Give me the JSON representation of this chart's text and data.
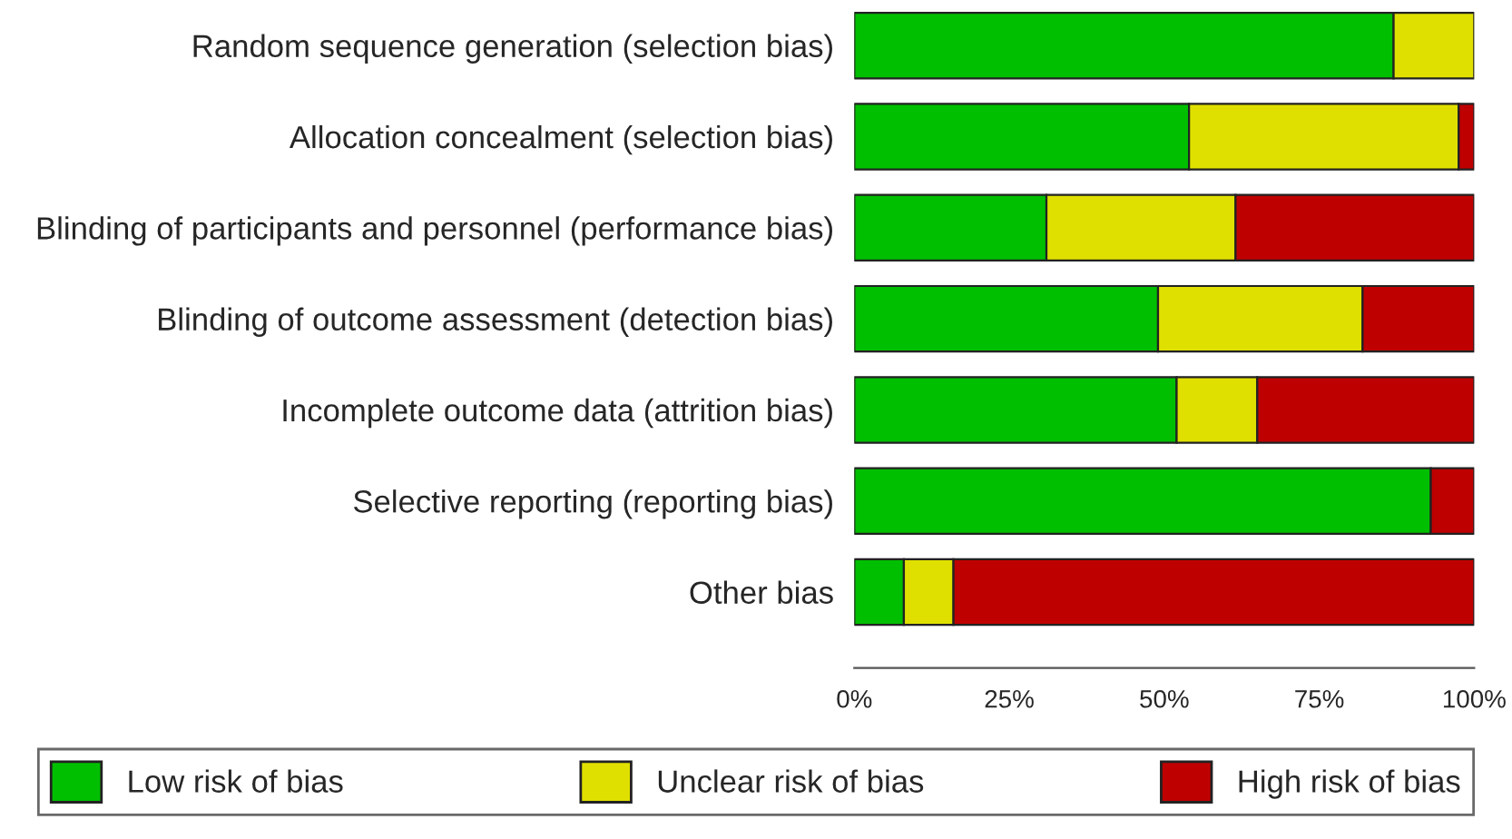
{
  "chart_data": {
    "type": "bar",
    "orientation": "horizontal",
    "stacked": true,
    "categories": [
      "Random sequence generation (selection bias)",
      "Allocation concealment (selection bias)",
      "Blinding of participants and personnel (performance bias)",
      "Blinding of outcome assessment (detection bias)",
      "Incomplete outcome data (attrition bias)",
      "Selective reporting (reporting bias)",
      "Other bias"
    ],
    "series": [
      {
        "name": "Low risk of bias",
        "color": "#00bf00",
        "values": [
          87,
          54,
          31,
          49,
          52,
          93,
          8
        ]
      },
      {
        "name": "Unclear risk of bias",
        "color": "#e0e000",
        "values": [
          13,
          43.5,
          30.5,
          33,
          13,
          0,
          8
        ]
      },
      {
        "name": "High risk of bias",
        "color": "#bf0000",
        "values": [
          0,
          2.5,
          38.5,
          18,
          35,
          7,
          84
        ]
      }
    ],
    "xlim": [
      0,
      100
    ],
    "xticks": [
      {
        "value": 0,
        "label": "0%"
      },
      {
        "value": 25,
        "label": "25%"
      },
      {
        "value": 50,
        "label": "50%"
      },
      {
        "value": 75,
        "label": "75%"
      },
      {
        "value": 100,
        "label": "100%"
      }
    ],
    "legend": "bottom",
    "grid": false
  }
}
